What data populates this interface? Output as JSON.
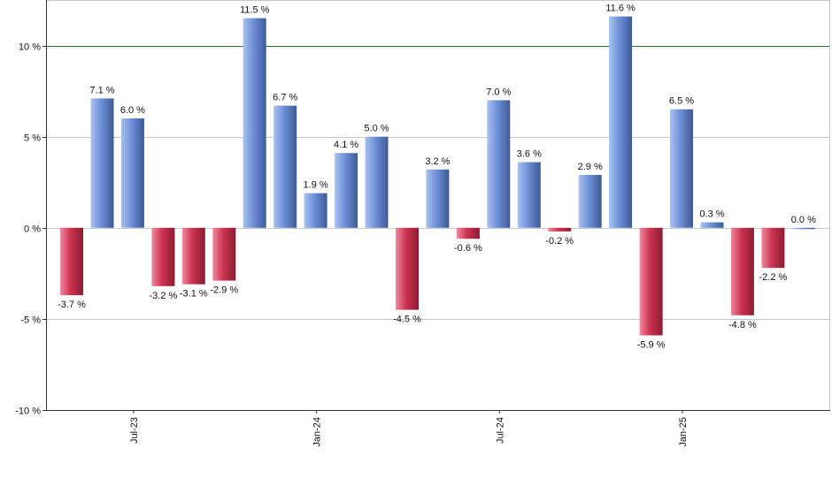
{
  "chart_data": {
    "type": "bar",
    "title": "",
    "xlabel": "",
    "ylabel": "",
    "ylim": [
      -10,
      12.5
    ],
    "yticks": [
      {
        "value": -10,
        "label": "-10 %"
      },
      {
        "value": -5,
        "label": "-5 %"
      },
      {
        "value": 0,
        "label": "0 %"
      },
      {
        "value": 5,
        "label": "5 %"
      },
      {
        "value": 10,
        "label": "10 %"
      }
    ],
    "reference_line": {
      "value": 10,
      "color": "#2e7d32"
    },
    "colors": {
      "positive": "#6d8fd6",
      "negative": "#cc3350"
    },
    "xtick_labels": [
      {
        "index": 2,
        "label": "Jul-23"
      },
      {
        "index": 8,
        "label": "Jan-24"
      },
      {
        "index": 14,
        "label": "Jul-24"
      },
      {
        "index": 20,
        "label": "Jan-25"
      }
    ],
    "values": [
      -3.7,
      7.1,
      6.0,
      -3.2,
      -3.1,
      -2.9,
      11.5,
      6.7,
      1.9,
      4.1,
      5.0,
      -4.5,
      3.2,
      -0.6,
      7.0,
      3.6,
      -0.2,
      2.9,
      11.6,
      -5.9,
      6.5,
      0.3,
      -4.8,
      -2.2,
      0.0
    ],
    "data_labels": [
      "-3.7 %",
      "7.1 %",
      "6.0 %",
      "-3.2 %",
      "-3.1 %",
      "-2.9 %",
      "11.5 %",
      "6.7 %",
      "1.9 %",
      "4.1 %",
      "5.0 %",
      "-4.5 %",
      "3.2 %",
      "-0.6 %",
      "7.0 %",
      "3.6 %",
      "-0.2 %",
      "2.9 %",
      "11.6 %",
      "-5.9 %",
      "6.5 %",
      "0.3 %",
      "-4.8 %",
      "-2.2 %",
      "0.0 %"
    ]
  }
}
